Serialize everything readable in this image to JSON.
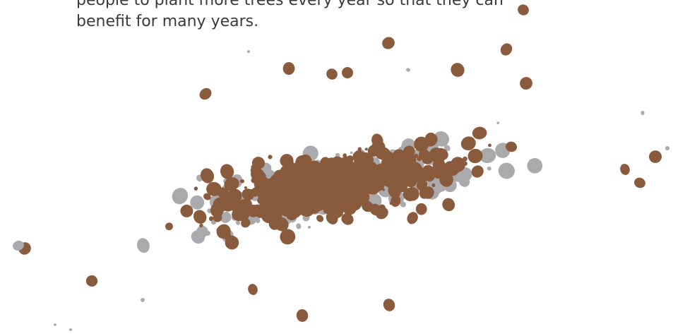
{
  "text": {
    "line_1": "people to plant more trees every year so that they can",
    "line_2": "benefit for many years."
  },
  "illustration": {
    "icon": "scattered-pebbles-illustration",
    "colors": {
      "brown": "#8a5a3c",
      "gray": "#aaaaad",
      "background": "#ffffff"
    }
  }
}
